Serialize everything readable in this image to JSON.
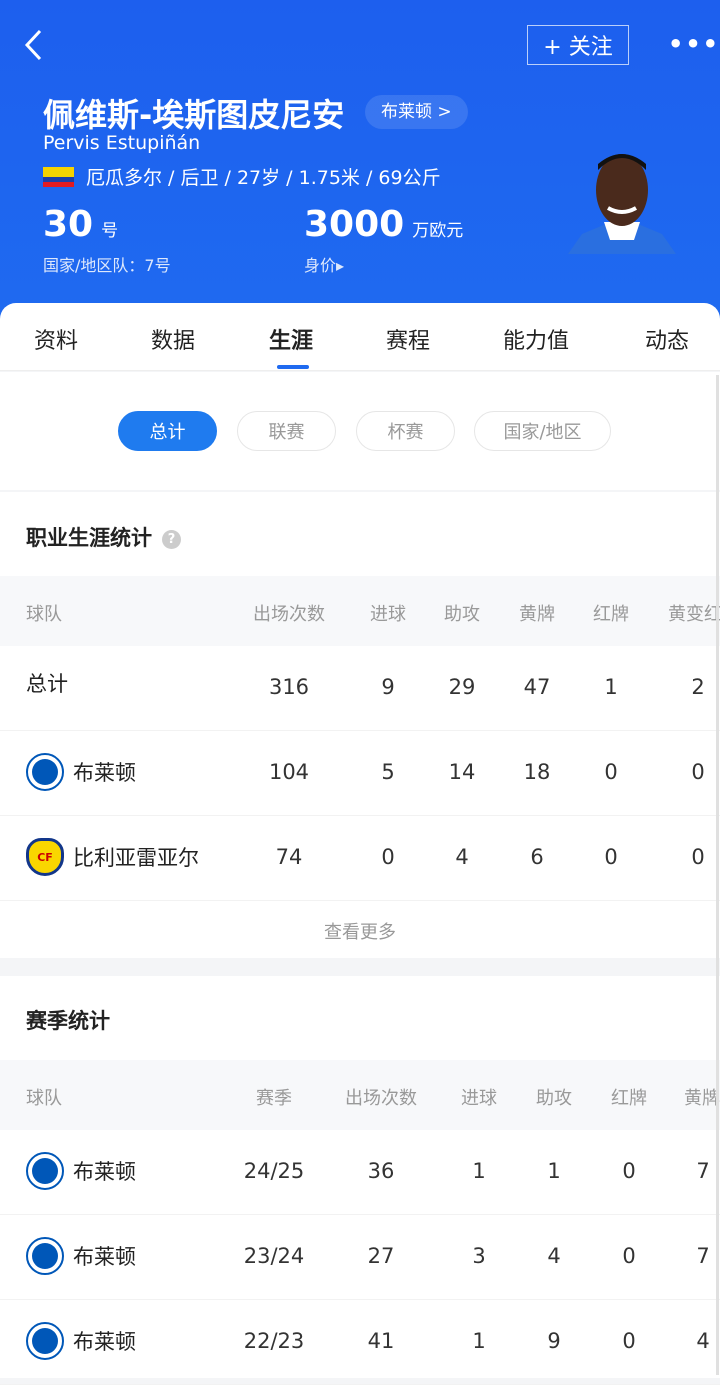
{
  "header": {
    "follow_label": "+ 关注",
    "name_cn": "佩维斯-埃斯图皮尼安",
    "team_chip": "布莱顿 >",
    "name_en": "Pervis Estupiñán",
    "info": "厄瓜多尔 / 后卫 / 27岁 / 1.75米 / 69公斤",
    "shirt_number": "30",
    "shirt_unit": "号",
    "national_number": "国家/地区队：7号",
    "market_value": "3000",
    "value_unit": "万欧元",
    "value_label": "身价▸",
    "brand_color": "#1f6af0"
  },
  "tabs": [
    "资料",
    "数据",
    "生涯",
    "赛程",
    "能力值",
    "动态"
  ],
  "active_tab": "生涯",
  "filters": [
    "总计",
    "联赛",
    "杯赛",
    "国家/地区"
  ],
  "career": {
    "title": "职业生涯统计",
    "headers": [
      "球队",
      "出场次数",
      "进球",
      "助攻",
      "黄牌",
      "红牌",
      "黄变红"
    ],
    "rows": [
      {
        "team": "总计",
        "logo": "",
        "v": [
          "316",
          "9",
          "29",
          "47",
          "1",
          "2"
        ]
      },
      {
        "team": "布莱顿",
        "logo": "brighton",
        "v": [
          "104",
          "5",
          "14",
          "18",
          "0",
          "0"
        ]
      },
      {
        "team": "比利亚雷亚尔",
        "logo": "villarreal",
        "v": [
          "74",
          "0",
          "4",
          "6",
          "0",
          "0"
        ]
      }
    ],
    "more": "查看更多"
  },
  "season": {
    "title": "赛季统计",
    "headers": [
      "球队",
      "赛季",
      "出场次数",
      "进球",
      "助攻",
      "红牌",
      "黄牌"
    ],
    "rows": [
      {
        "team": "布莱顿",
        "v": [
          "24/25",
          "36",
          "1",
          "1",
          "0",
          "7"
        ]
      },
      {
        "team": "布莱顿",
        "v": [
          "23/24",
          "27",
          "3",
          "4",
          "0",
          "7"
        ]
      },
      {
        "team": "布莱顿",
        "v": [
          "22/23",
          "41",
          "1",
          "9",
          "0",
          "4"
        ]
      }
    ]
  }
}
